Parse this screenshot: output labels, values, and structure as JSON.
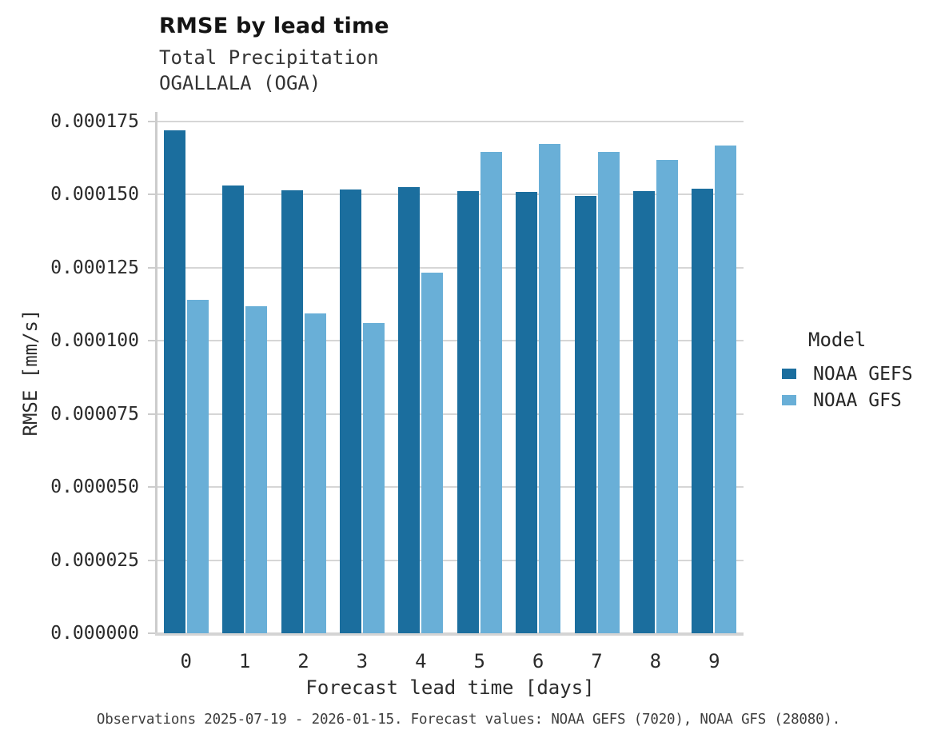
{
  "header": {
    "title": "RMSE by lead time",
    "subtitle_line1": "Total Precipitation",
    "subtitle_line2": "OGALLALA (OGA)"
  },
  "legend": {
    "title": "Model",
    "items": [
      {
        "label": "NOAA GEFS",
        "color": "#1b6e9e"
      },
      {
        "label": "NOAA GFS",
        "color": "#69afd7"
      }
    ]
  },
  "caption": "Observations 2025-07-19 - 2026-01-15. Forecast values: NOAA GEFS (7020), NOAA GFS (28080).",
  "colors": {
    "gefs_bar": "#1b6e9e",
    "gfs_bar": "#69afd7",
    "gridline": "#d6d6d6",
    "axis": "#cccccc",
    "background": "#ffffff"
  },
  "chart_data": {
    "type": "bar",
    "title": "RMSE by lead time",
    "subtitle": [
      "Total Precipitation",
      "OGALLALA (OGA)"
    ],
    "xlabel": "Forecast lead time [days]",
    "ylabel": "RMSE [mm/s]",
    "categories": [
      "0",
      "1",
      "2",
      "3",
      "4",
      "5",
      "6",
      "7",
      "8",
      "9"
    ],
    "series": [
      {
        "name": "NOAA GEFS",
        "color": "#1b6e9e",
        "values": [
          0.000172,
          0.000153,
          0.0001515,
          0.0001517,
          0.0001527,
          0.0001511,
          0.0001509,
          0.0001497,
          0.0001513,
          0.0001519
        ]
      },
      {
        "name": "NOAA GFS",
        "color": "#69afd7",
        "values": [
          0.0001141,
          0.0001118,
          0.0001095,
          0.0001062,
          0.0001234,
          0.0001645,
          0.0001673,
          0.0001647,
          0.0001619,
          0.0001667
        ]
      }
    ],
    "ylim": [
      0,
      0.000175
    ],
    "yticks": [
      {
        "value": 0.0,
        "label": "0.000000"
      },
      {
        "value": 2.5e-05,
        "label": "0.000025"
      },
      {
        "value": 5e-05,
        "label": "0.000050"
      },
      {
        "value": 7.5e-05,
        "label": "0.000075"
      },
      {
        "value": 0.0001,
        "label": "0.000100"
      },
      {
        "value": 0.000125,
        "label": "0.000125"
      },
      {
        "value": 0.00015,
        "label": "0.000150"
      },
      {
        "value": 0.000175,
        "label": "0.000175"
      }
    ],
    "grid": true,
    "legend_title": "Model",
    "legend_position": "right"
  }
}
